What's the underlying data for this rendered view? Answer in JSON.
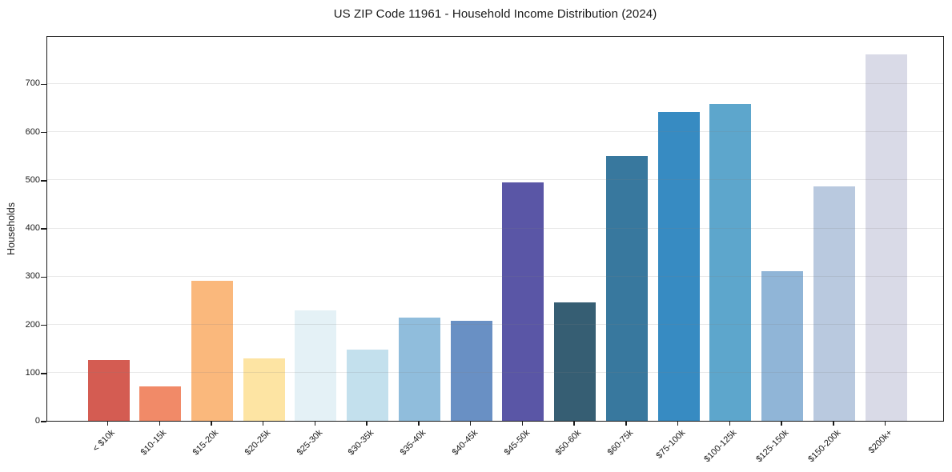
{
  "figure": {
    "title": "US ZIP Code 11961 - Household Income Distribution (2024)",
    "ylabel": "Households"
  },
  "chart_data": {
    "type": "bar",
    "title": "US ZIP Code 11961 - Household Income Distribution (2024)",
    "xlabel": "",
    "ylabel": "Households",
    "categories": [
      "< $10k",
      "$10-15k",
      "$15-20k",
      "$20-25k",
      "$25-30k",
      "$30-35k",
      "$35-40k",
      "$40-45k",
      "$45-50k",
      "$50-60k",
      "$60-75k",
      "$75-100k",
      "$100-125k",
      "$125-150k",
      "$150-200k",
      "$200k+"
    ],
    "values": [
      126,
      71,
      290,
      130,
      229,
      147,
      215,
      207,
      495,
      245,
      550,
      640,
      658,
      311,
      487,
      760
    ],
    "bar_colors": [
      "#d45c52",
      "#f18a68",
      "#fab87c",
      "#fde4a3",
      "#e4f1f6",
      "#c3e0ed",
      "#90bddc",
      "#6990c4",
      "#5a56a6",
      "#365e73",
      "#38789e",
      "#378bc2",
      "#5da6cc",
      "#90b5d7",
      "#b9c9df",
      "#d9dae7"
    ],
    "yticks": [
      0,
      100,
      200,
      300,
      400,
      500,
      600,
      700
    ],
    "ylim": [
      0,
      800
    ],
    "grid": true,
    "legend": false,
    "axis_color": "#1a1a1a"
  }
}
